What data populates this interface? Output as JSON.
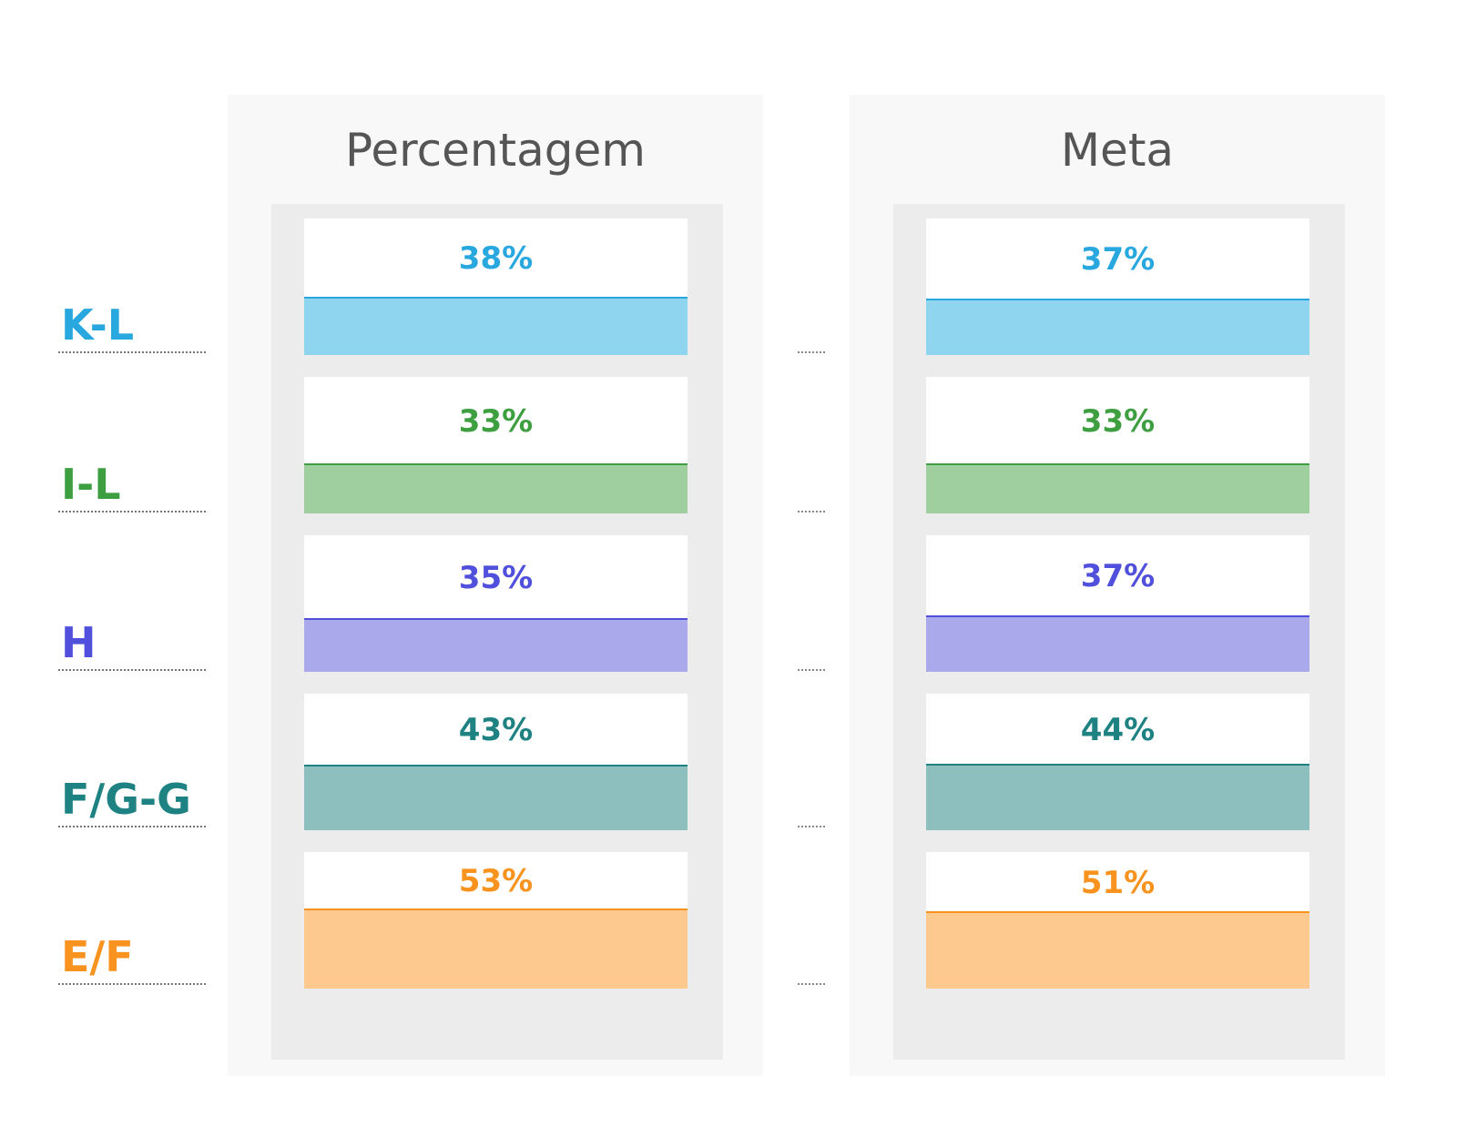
{
  "chart_data": {
    "type": "bar",
    "title": "",
    "categories": [
      "K-L",
      "I-L",
      "H",
      "F/G-G",
      "E/F"
    ],
    "category_colors": [
      "#29a8e0",
      "#3e9f41",
      "#5050dc",
      "#1f8282",
      "#f7931e"
    ],
    "fill_colors": [
      "#90d5ef",
      "#a0cf9f",
      "#a9a9eb",
      "#8dbfbf",
      "#fec98e"
    ],
    "series": [
      {
        "name": "Percentagem",
        "values": [
          38,
          33,
          35,
          43,
          53
        ],
        "value_labels": [
          "38%",
          "33%",
          "35%",
          "43%",
          "53%"
        ]
      },
      {
        "name": "Meta",
        "values": [
          37,
          33,
          37,
          44,
          51
        ],
        "value_labels": [
          "37%",
          "33%",
          "37%",
          "44%",
          "51%"
        ]
      }
    ],
    "unit": "%",
    "ylim": [
      0,
      100
    ]
  }
}
